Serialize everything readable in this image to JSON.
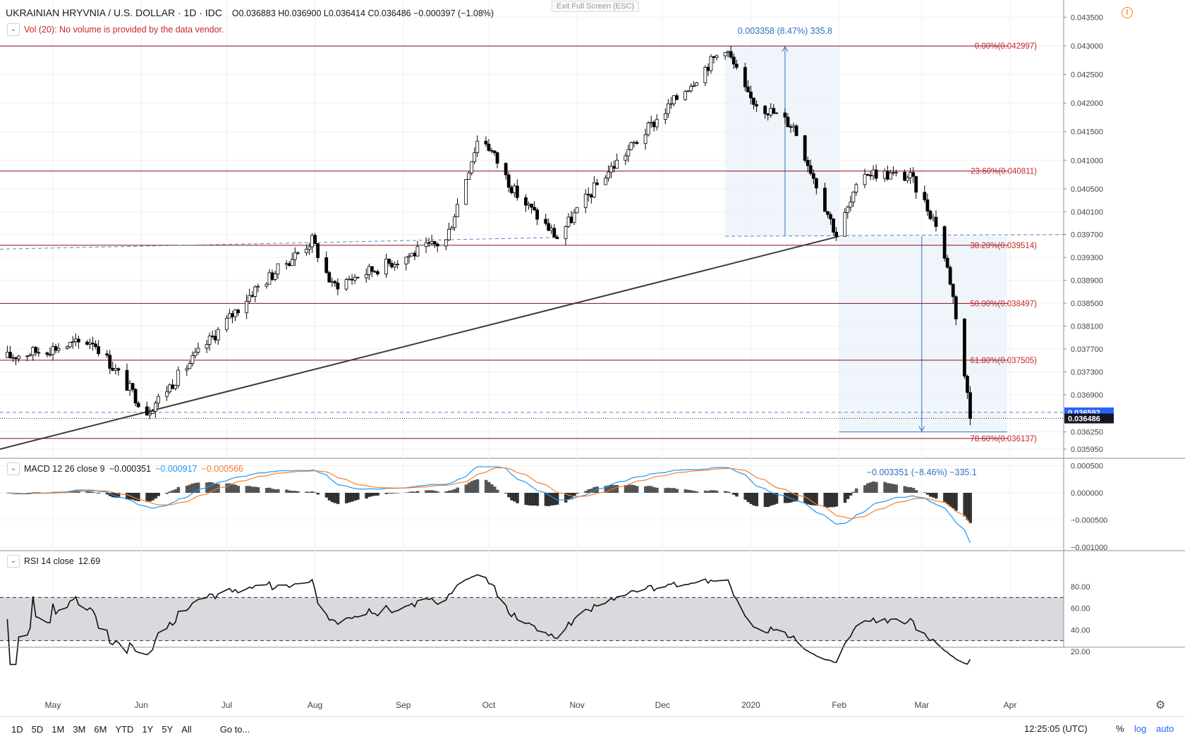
{
  "header": {
    "symbol": "UKRAINIAN HRYVNIA / U.S. DOLLAR · 1D · IDC",
    "ohlc": "O0.036883 H0.036900 L0.036414 C0.036486 −0.000397 (−1.08%)",
    "volume_note": "Vol (20): No volume is provided by the data vendor.",
    "exit_fullscreen": "Exit Full Screen (ESC)",
    "warning_glyph": "!"
  },
  "macd_legend": {
    "label": "MACD 12 26 close 9",
    "hist": "−0.000351",
    "macd": "−0.000917",
    "signal": "−0.000566"
  },
  "rsi_legend": {
    "label": "RSI 14 close",
    "value": "12.69"
  },
  "bottom": {
    "ranges": [
      "1D",
      "5D",
      "1M",
      "3M",
      "6M",
      "YTD",
      "1Y",
      "5Y",
      "All"
    ],
    "goto": "Go to...",
    "clock": "12:25:05 (UTC)",
    "percent": "%",
    "log": "log",
    "auto": "auto"
  },
  "colors": {
    "fib": "#880e1f",
    "fib_label": "#c62828",
    "measure": "#2f6fc2",
    "macd": "#2196f3",
    "signal": "#f08030",
    "rsi_band": "#d4d6da"
  },
  "chart_data": {
    "type": "candlestick",
    "price_axis_ticks": [
      "0.043500",
      "0.043000",
      "0.042500",
      "0.042000",
      "0.041500",
      "0.041000",
      "0.040500",
      "0.040100",
      "0.039700",
      "0.039300",
      "0.038900",
      "0.038500",
      "0.038100",
      "0.037700",
      "0.037300",
      "0.036900",
      "0.036250",
      "0.035950"
    ],
    "price_axis_values": [
      0.0435,
      0.043,
      0.0425,
      0.042,
      0.0415,
      0.041,
      0.0405,
      0.0401,
      0.0397,
      0.0393,
      0.0389,
      0.0385,
      0.0381,
      0.0377,
      0.0373,
      0.0369,
      0.03625,
      0.03595
    ],
    "x_labels": [
      "May",
      "Jun",
      "Jul",
      "Aug",
      "Sep",
      "Oct",
      "Nov",
      "Dec",
      "2020",
      "Feb",
      "Mar",
      "Apr"
    ],
    "last_price": {
      "label": "0.036486",
      "value": 0.036486
    },
    "blue_level": {
      "label": "0.036592",
      "value": 0.036592
    },
    "fib_levels": [
      {
        "label": "0.00%(0.042997)",
        "value": 0.042997
      },
      {
        "label": "23.60%(0.040811)",
        "value": 0.040811
      },
      {
        "label": "38.20%(0.039514)",
        "value": 0.039514
      },
      {
        "label": "50.00%(0.038497)",
        "value": 0.038497
      },
      {
        "label": "61.80%(0.037505)",
        "value": 0.037505
      },
      {
        "label": "78.60%(0.036137)",
        "value": 0.036137
      }
    ],
    "measure_up": "0.003358 (8.47%) 335.8",
    "measure_down": "−0.003351 (−8.46%) −335.1",
    "macd_axis_ticks": [
      "0.000500",
      "0.000000",
      "−0.000500",
      "−0.001000"
    ],
    "macd_axis_values": [
      0.0005,
      0,
      -0.0005,
      -0.001
    ],
    "rsi_axis_ticks": [
      "80.00",
      "60.00",
      "40.00",
      "20.00"
    ],
    "rsi_axis_values": [
      80,
      60,
      40,
      20
    ],
    "rsi_band": [
      30,
      70
    ],
    "anchors": [
      {
        "date": "2019-04-14",
        "price": 0.03755
      },
      {
        "date": "2019-05-15",
        "price": 0.03785
      },
      {
        "date": "2019-06-03",
        "price": 0.0366
      },
      {
        "date": "2019-07-10",
        "price": 0.0387
      },
      {
        "date": "2019-07-31",
        "price": 0.0396
      },
      {
        "date": "2019-08-07",
        "price": 0.0388
      },
      {
        "date": "2019-09-16",
        "price": 0.0396
      },
      {
        "date": "2019-09-28",
        "price": 0.0415
      },
      {
        "date": "2019-10-10",
        "price": 0.04045
      },
      {
        "date": "2019-10-25",
        "price": 0.03965
      },
      {
        "date": "2019-11-10",
        "price": 0.0407
      },
      {
        "date": "2019-12-23",
        "price": 0.04299
      },
      {
        "date": "2019-12-31",
        "price": 0.0421
      },
      {
        "date": "2020-01-16",
        "price": 0.0416
      },
      {
        "date": "2020-01-31",
        "price": 0.0397
      },
      {
        "date": "2020-02-10",
        "price": 0.0408
      },
      {
        "date": "2020-02-26",
        "price": 0.0407
      },
      {
        "date": "2020-03-06",
        "price": 0.0399
      },
      {
        "date": "2020-03-11",
        "price": 0.0389
      },
      {
        "date": "2020-03-13",
        "price": 0.0383
      },
      {
        "date": "2020-03-17",
        "price": 0.0369
      },
      {
        "date": "2020-03-18",
        "price": 0.036486
      }
    ],
    "trend_line": [
      {
        "date": "2019-04-14",
        "price": 0.03599
      },
      {
        "date": "2020-02-01",
        "price": 0.03967
      }
    ]
  }
}
